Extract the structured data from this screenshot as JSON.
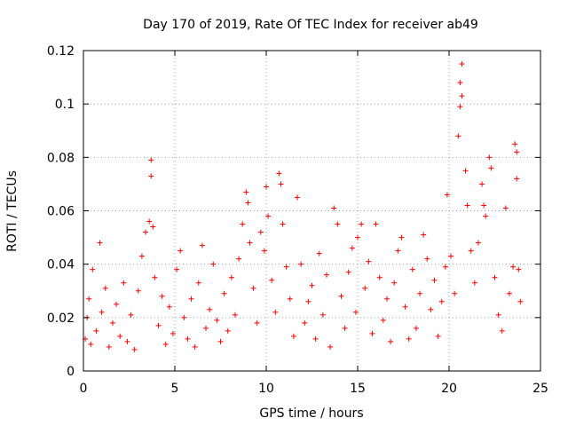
{
  "chart_data": {
    "type": "scatter",
    "title": "Day 170 of 2019, Rate Of TEC Index for receiver ab49",
    "xlabel": "GPS time / hours",
    "ylabel": "ROTI / TECUs",
    "xlim": [
      0,
      25
    ],
    "ylim": [
      0,
      0.12
    ],
    "xticks": [
      0,
      5,
      10,
      15,
      20,
      25
    ],
    "yticks": [
      0,
      0.02,
      0.04,
      0.06,
      0.08,
      0.1,
      0.12
    ],
    "xtick_labels": [
      "0",
      "5",
      "10",
      "15",
      "20",
      "25"
    ],
    "ytick_labels": [
      "0",
      "0.02",
      "0.04",
      "0.06",
      "0.08",
      "0.1",
      "0.12"
    ],
    "grid": true,
    "marker": "+",
    "color": "#ff0000",
    "series": [
      {
        "points": [
          [
            0.1,
            0.012
          ],
          [
            0.2,
            0.02
          ],
          [
            0.3,
            0.027
          ],
          [
            0.4,
            0.01
          ],
          [
            0.5,
            0.038
          ],
          [
            0.7,
            0.015
          ],
          [
            0.9,
            0.048
          ],
          [
            1.0,
            0.022
          ],
          [
            1.2,
            0.031
          ],
          [
            1.4,
            0.009
          ],
          [
            1.6,
            0.018
          ],
          [
            1.8,
            0.025
          ],
          [
            2.0,
            0.013
          ],
          [
            2.2,
            0.033
          ],
          [
            2.4,
            0.011
          ],
          [
            2.6,
            0.021
          ],
          [
            2.8,
            0.008
          ],
          [
            3.0,
            0.03
          ],
          [
            3.2,
            0.043
          ],
          [
            3.4,
            0.052
          ],
          [
            3.6,
            0.056
          ],
          [
            3.7,
            0.079
          ],
          [
            3.7,
            0.073
          ],
          [
            3.8,
            0.054
          ],
          [
            3.9,
            0.035
          ],
          [
            4.1,
            0.017
          ],
          [
            4.3,
            0.028
          ],
          [
            4.5,
            0.01
          ],
          [
            4.7,
            0.024
          ],
          [
            4.9,
            0.014
          ],
          [
            5.1,
            0.038
          ],
          [
            5.3,
            0.045
          ],
          [
            5.5,
            0.02
          ],
          [
            5.7,
            0.012
          ],
          [
            5.9,
            0.027
          ],
          [
            6.1,
            0.009
          ],
          [
            6.3,
            0.033
          ],
          [
            6.5,
            0.047
          ],
          [
            6.7,
            0.016
          ],
          [
            6.9,
            0.023
          ],
          [
            7.1,
            0.04
          ],
          [
            7.3,
            0.019
          ],
          [
            7.5,
            0.011
          ],
          [
            7.7,
            0.029
          ],
          [
            7.9,
            0.015
          ],
          [
            8.1,
            0.035
          ],
          [
            8.3,
            0.021
          ],
          [
            8.5,
            0.042
          ],
          [
            8.7,
            0.055
          ],
          [
            8.9,
            0.067
          ],
          [
            9.0,
            0.063
          ],
          [
            9.1,
            0.048
          ],
          [
            9.3,
            0.031
          ],
          [
            9.5,
            0.018
          ],
          [
            9.7,
            0.052
          ],
          [
            9.9,
            0.045
          ],
          [
            10.0,
            0.069
          ],
          [
            10.1,
            0.058
          ],
          [
            10.3,
            0.034
          ],
          [
            10.5,
            0.022
          ],
          [
            10.7,
            0.074
          ],
          [
            10.8,
            0.07
          ],
          [
            10.9,
            0.055
          ],
          [
            11.1,
            0.039
          ],
          [
            11.3,
            0.027
          ],
          [
            11.5,
            0.013
          ],
          [
            11.7,
            0.065
          ],
          [
            11.9,
            0.04
          ],
          [
            12.1,
            0.018
          ],
          [
            12.3,
            0.026
          ],
          [
            12.5,
            0.032
          ],
          [
            12.7,
            0.012
          ],
          [
            12.9,
            0.044
          ],
          [
            13.1,
            0.021
          ],
          [
            13.3,
            0.036
          ],
          [
            13.5,
            0.009
          ],
          [
            13.7,
            0.061
          ],
          [
            13.9,
            0.055
          ],
          [
            14.1,
            0.028
          ],
          [
            14.3,
            0.016
          ],
          [
            14.5,
            0.037
          ],
          [
            14.7,
            0.046
          ],
          [
            14.9,
            0.022
          ],
          [
            15.0,
            0.05
          ],
          [
            15.2,
            0.055
          ],
          [
            15.4,
            0.031
          ],
          [
            15.6,
            0.041
          ],
          [
            15.8,
            0.014
          ],
          [
            16.0,
            0.055
          ],
          [
            16.2,
            0.035
          ],
          [
            16.4,
            0.019
          ],
          [
            16.6,
            0.027
          ],
          [
            16.8,
            0.011
          ],
          [
            17.0,
            0.033
          ],
          [
            17.2,
            0.045
          ],
          [
            17.4,
            0.05
          ],
          [
            17.6,
            0.024
          ],
          [
            17.8,
            0.012
          ],
          [
            18.0,
            0.038
          ],
          [
            18.2,
            0.016
          ],
          [
            18.4,
            0.029
          ],
          [
            18.6,
            0.051
          ],
          [
            18.8,
            0.042
          ],
          [
            19.0,
            0.023
          ],
          [
            19.2,
            0.034
          ],
          [
            19.4,
            0.013
          ],
          [
            19.6,
            0.026
          ],
          [
            19.8,
            0.039
          ],
          [
            19.9,
            0.066
          ],
          [
            20.1,
            0.043
          ],
          [
            20.3,
            0.029
          ],
          [
            20.5,
            0.088
          ],
          [
            20.6,
            0.099
          ],
          [
            20.6,
            0.108
          ],
          [
            20.7,
            0.115
          ],
          [
            20.7,
            0.103
          ],
          [
            20.9,
            0.075
          ],
          [
            21.0,
            0.062
          ],
          [
            21.2,
            0.045
          ],
          [
            21.4,
            0.033
          ],
          [
            21.6,
            0.048
          ],
          [
            21.8,
            0.07
          ],
          [
            21.9,
            0.062
          ],
          [
            22.0,
            0.058
          ],
          [
            22.2,
            0.08
          ],
          [
            22.3,
            0.076
          ],
          [
            22.5,
            0.035
          ],
          [
            22.7,
            0.021
          ],
          [
            22.9,
            0.015
          ],
          [
            23.1,
            0.061
          ],
          [
            23.3,
            0.029
          ],
          [
            23.5,
            0.039
          ],
          [
            23.6,
            0.085
          ],
          [
            23.7,
            0.082
          ],
          [
            23.7,
            0.072
          ],
          [
            23.8,
            0.038
          ],
          [
            23.9,
            0.026
          ]
        ]
      }
    ]
  }
}
